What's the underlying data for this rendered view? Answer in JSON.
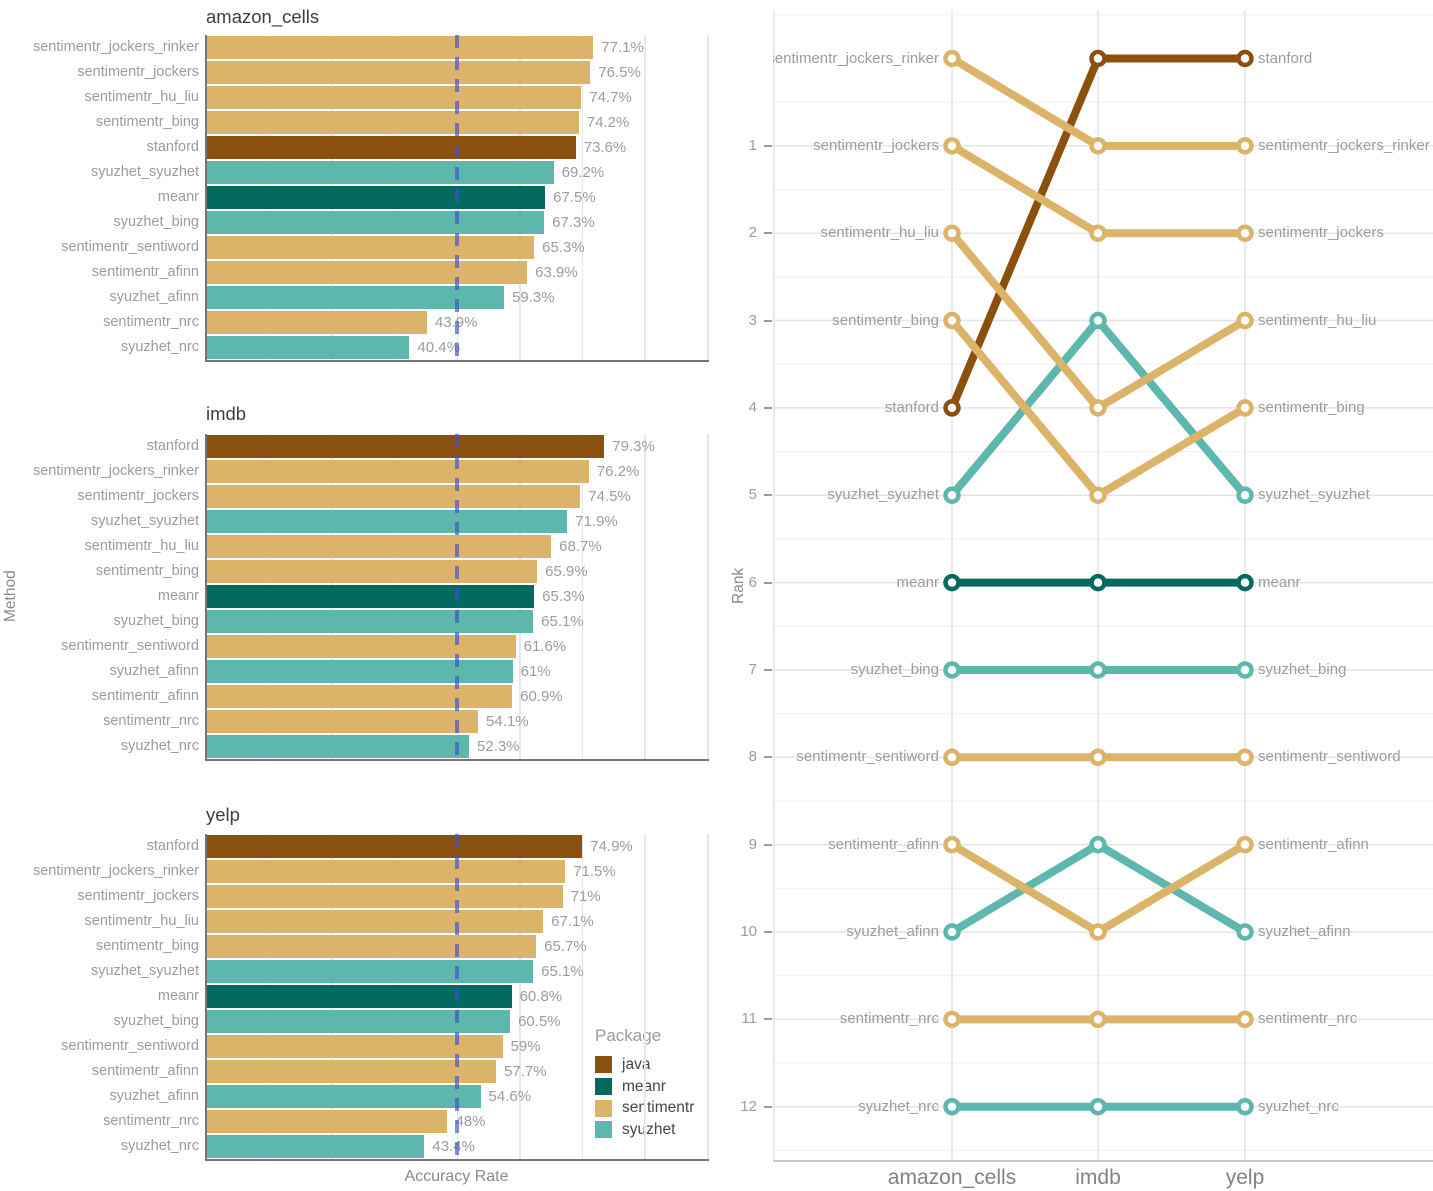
{
  "colors": {
    "java": "#8C500E",
    "meanr": "#046A60",
    "sentimentr": "#DBB369",
    "syuzhet": "#5DB7AD",
    "reference_line": "#3E50C8",
    "grid_major": "#E7E7E7",
    "grid_minor": "#F2F2F2",
    "axis_text": "#9C9C9C",
    "title_text": "#3E3E3E"
  },
  "legend": {
    "title": "Package",
    "items": [
      {
        "label": "java",
        "package": "java"
      },
      {
        "label": "meanr",
        "package": "meanr"
      },
      {
        "label": "sentimentr",
        "package": "sentimentr"
      },
      {
        "label": "syuzhet",
        "package": "syuzhet"
      }
    ]
  },
  "chart_data": {
    "method_axis_label": "Method",
    "bar_charts": [
      {
        "type": "bar",
        "title": "amazon_cells",
        "xlabel": "",
        "x_axis": {
          "max": 100,
          "gridline_interval_pct": 12.5,
          "reference_line_pct": 50
        },
        "rows": [
          {
            "method": "sentimentr_jockers_rinker",
            "package": "sentimentr",
            "value": 77.1,
            "label": "77.1%"
          },
          {
            "method": "sentimentr_jockers",
            "package": "sentimentr",
            "value": 76.5,
            "label": "76.5%"
          },
          {
            "method": "sentimentr_hu_liu",
            "package": "sentimentr",
            "value": 74.7,
            "label": "74.7%"
          },
          {
            "method": "sentimentr_bing",
            "package": "sentimentr",
            "value": 74.2,
            "label": "74.2%"
          },
          {
            "method": "stanford",
            "package": "java",
            "value": 73.6,
            "label": "73.6%"
          },
          {
            "method": "syuzhet_syuzhet",
            "package": "syuzhet",
            "value": 69.2,
            "label": "69.2%"
          },
          {
            "method": "meanr",
            "package": "meanr",
            "value": 67.5,
            "label": "67.5%"
          },
          {
            "method": "syuzhet_bing",
            "package": "syuzhet",
            "value": 67.3,
            "label": "67.3%"
          },
          {
            "method": "sentimentr_sentiword",
            "package": "sentimentr",
            "value": 65.3,
            "label": "65.3%"
          },
          {
            "method": "sentimentr_afinn",
            "package": "sentimentr",
            "value": 63.9,
            "label": "63.9%"
          },
          {
            "method": "syuzhet_afinn",
            "package": "syuzhet",
            "value": 59.3,
            "label": "59.3%"
          },
          {
            "method": "sentimentr_nrc",
            "package": "sentimentr",
            "value": 43.9,
            "label": "43.9%"
          },
          {
            "method": "syuzhet_nrc",
            "package": "syuzhet",
            "value": 40.4,
            "label": "40.4%"
          }
        ]
      },
      {
        "type": "bar",
        "title": "imdb",
        "xlabel": "",
        "x_axis": {
          "max": 100,
          "gridline_interval_pct": 12.5,
          "reference_line_pct": 50
        },
        "rows": [
          {
            "method": "stanford",
            "package": "java",
            "value": 79.3,
            "label": "79.3%"
          },
          {
            "method": "sentimentr_jockers_rinker",
            "package": "sentimentr",
            "value": 76.2,
            "label": "76.2%"
          },
          {
            "method": "sentimentr_jockers",
            "package": "sentimentr",
            "value": 74.5,
            "label": "74.5%"
          },
          {
            "method": "syuzhet_syuzhet",
            "package": "syuzhet",
            "value": 71.9,
            "label": "71.9%"
          },
          {
            "method": "sentimentr_hu_liu",
            "package": "sentimentr",
            "value": 68.7,
            "label": "68.7%"
          },
          {
            "method": "sentimentr_bing",
            "package": "sentimentr",
            "value": 65.9,
            "label": "65.9%"
          },
          {
            "method": "meanr",
            "package": "meanr",
            "value": 65.3,
            "label": "65.3%"
          },
          {
            "method": "syuzhet_bing",
            "package": "syuzhet",
            "value": 65.1,
            "label": "65.1%"
          },
          {
            "method": "sentimentr_sentiword",
            "package": "sentimentr",
            "value": 61.6,
            "label": "61.6%"
          },
          {
            "method": "syuzhet_afinn",
            "package": "syuzhet",
            "value": 61,
            "label": "61%"
          },
          {
            "method": "sentimentr_afinn",
            "package": "sentimentr",
            "value": 60.9,
            "label": "60.9%"
          },
          {
            "method": "sentimentr_nrc",
            "package": "sentimentr",
            "value": 54.1,
            "label": "54.1%"
          },
          {
            "method": "syuzhet_nrc",
            "package": "syuzhet",
            "value": 52.3,
            "label": "52.3%"
          }
        ]
      },
      {
        "type": "bar",
        "title": "yelp",
        "xlabel": "Accuracy Rate",
        "x_axis": {
          "max": 100,
          "gridline_interval_pct": 12.5,
          "reference_line_pct": 50
        },
        "rows": [
          {
            "method": "stanford",
            "package": "java",
            "value": 74.9,
            "label": "74.9%"
          },
          {
            "method": "sentimentr_jockers_rinker",
            "package": "sentimentr",
            "value": 71.5,
            "label": "71.5%"
          },
          {
            "method": "sentimentr_jockers",
            "package": "sentimentr",
            "value": 71,
            "label": "71%"
          },
          {
            "method": "sentimentr_hu_liu",
            "package": "sentimentr",
            "value": 67.1,
            "label": "67.1%"
          },
          {
            "method": "sentimentr_bing",
            "package": "sentimentr",
            "value": 65.7,
            "label": "65.7%"
          },
          {
            "method": "syuzhet_syuzhet",
            "package": "syuzhet",
            "value": 65.1,
            "label": "65.1%"
          },
          {
            "method": "meanr",
            "package": "meanr",
            "value": 60.8,
            "label": "60.8%"
          },
          {
            "method": "syuzhet_bing",
            "package": "syuzhet",
            "value": 60.5,
            "label": "60.5%"
          },
          {
            "method": "sentimentr_sentiword",
            "package": "sentimentr",
            "value": 59,
            "label": "59%"
          },
          {
            "method": "sentimentr_afinn",
            "package": "sentimentr",
            "value": 57.7,
            "label": "57.7%"
          },
          {
            "method": "syuzhet_afinn",
            "package": "syuzhet",
            "value": 54.6,
            "label": "54.6%"
          },
          {
            "method": "sentimentr_nrc",
            "package": "sentimentr",
            "value": 48,
            "label": "48%"
          },
          {
            "method": "syuzhet_nrc",
            "package": "syuzhet",
            "value": 43.4,
            "label": "43.4%"
          }
        ]
      }
    ],
    "bump_chart": {
      "type": "line",
      "variant": "bump",
      "ylabel": "Rank",
      "x_categories": [
        "amazon_cells",
        "imdb",
        "yelp"
      ],
      "y_ticks": [
        "1",
        "2",
        "3",
        "4",
        "5",
        "6",
        "7",
        "8",
        "9",
        "10",
        "11",
        "12"
      ],
      "note": "rows run 0 (top) to 12 (bottom); axis ticks label rows 1-12",
      "series": [
        {
          "name": "syuzhet_syuzhet",
          "package": "syuzhet",
          "ranks": [
            5,
            3,
            5
          ]
        },
        {
          "name": "syuzhet_bing",
          "package": "syuzhet",
          "ranks": [
            7,
            7,
            7
          ]
        },
        {
          "name": "syuzhet_afinn",
          "package": "syuzhet",
          "ranks": [
            10,
            9,
            10
          ]
        },
        {
          "name": "syuzhet_nrc",
          "package": "syuzhet",
          "ranks": [
            12,
            12,
            12
          ]
        },
        {
          "name": "stanford",
          "package": "java",
          "ranks": [
            4,
            0,
            0
          ]
        },
        {
          "name": "sentimentr_jockers_rinker",
          "package": "sentimentr",
          "ranks": [
            0,
            1,
            1
          ]
        },
        {
          "name": "sentimentr_jockers",
          "package": "sentimentr",
          "ranks": [
            1,
            2,
            2
          ]
        },
        {
          "name": "sentimentr_hu_liu",
          "package": "sentimentr",
          "ranks": [
            2,
            4,
            3
          ]
        },
        {
          "name": "sentimentr_bing",
          "package": "sentimentr",
          "ranks": [
            3,
            5,
            4
          ]
        },
        {
          "name": "sentimentr_sentiword",
          "package": "sentimentr",
          "ranks": [
            8,
            8,
            8
          ]
        },
        {
          "name": "sentimentr_afinn",
          "package": "sentimentr",
          "ranks": [
            9,
            10,
            9
          ]
        },
        {
          "name": "sentimentr_nrc",
          "package": "sentimentr",
          "ranks": [
            11,
            11,
            11
          ]
        },
        {
          "name": "meanr",
          "package": "meanr",
          "ranks": [
            6,
            6,
            6
          ]
        }
      ]
    }
  }
}
